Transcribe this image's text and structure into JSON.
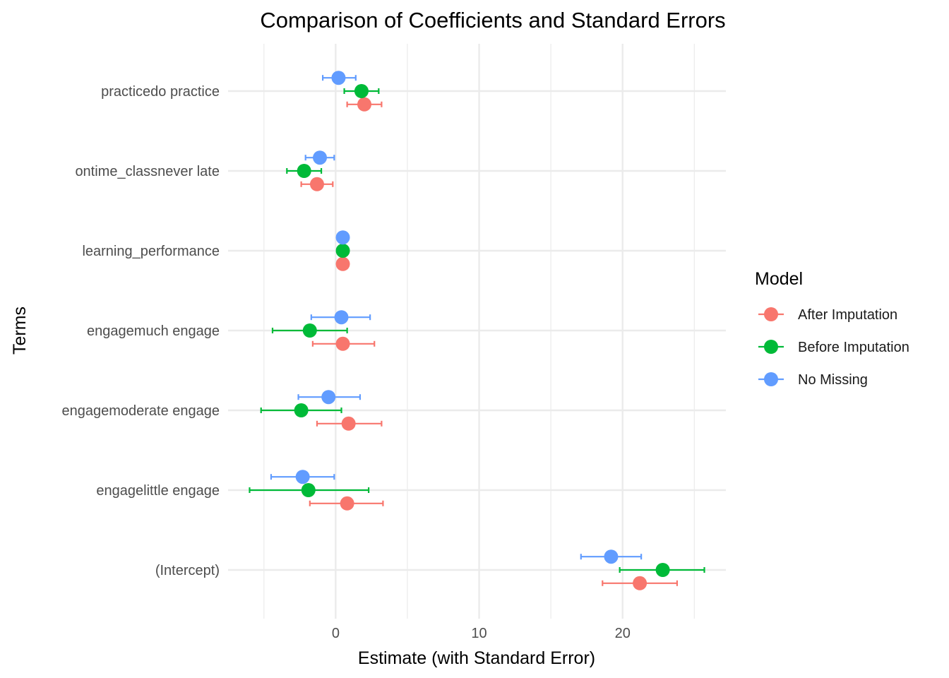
{
  "chart_data": {
    "type": "scatter",
    "subtype": "coefficient-plot-with-error-bars",
    "title": "Comparison of Coefficients and Standard Errors",
    "xlabel": "Estimate (with Standard Error)",
    "ylabel": "Terms",
    "xlim": [
      -7.5,
      27.2
    ],
    "x_ticks": [
      0,
      10,
      20
    ],
    "x_minor_ticks": [
      -5,
      5,
      15,
      25
    ],
    "grid": true,
    "legend": {
      "title": "Model",
      "position": "right"
    },
    "terms": [
      "(Intercept)",
      "engagelittle engage",
      "engagemoderate engage",
      "engagemuch engage",
      "learning_performance",
      "ontime_classnever late",
      "practicedo practice"
    ],
    "series": [
      {
        "name": "After Imputation",
        "color": "#F8766D",
        "points": [
          {
            "term": "(Intercept)",
            "estimate": 21.2,
            "lower": 18.6,
            "upper": 23.8
          },
          {
            "term": "engagelittle engage",
            "estimate": 0.8,
            "lower": -1.8,
            "upper": 3.3
          },
          {
            "term": "engagemoderate engage",
            "estimate": 0.9,
            "lower": -1.3,
            "upper": 3.2
          },
          {
            "term": "engagemuch engage",
            "estimate": 0.5,
            "lower": -1.6,
            "upper": 2.7
          },
          {
            "term": "learning_performance",
            "estimate": 0.5,
            "lower": 0.4,
            "upper": 0.6
          },
          {
            "term": "ontime_classnever late",
            "estimate": -1.3,
            "lower": -2.4,
            "upper": -0.2
          },
          {
            "term": "practicedo practice",
            "estimate": 2.0,
            "lower": 0.8,
            "upper": 3.2
          }
        ]
      },
      {
        "name": "Before Imputation",
        "color": "#00BA38",
        "points": [
          {
            "term": "(Intercept)",
            "estimate": 22.8,
            "lower": 19.8,
            "upper": 25.7
          },
          {
            "term": "engagelittle engage",
            "estimate": -1.9,
            "lower": -6.0,
            "upper": 2.3
          },
          {
            "term": "engagemoderate engage",
            "estimate": -2.4,
            "lower": -5.2,
            "upper": 0.4
          },
          {
            "term": "engagemuch engage",
            "estimate": -1.8,
            "lower": -4.4,
            "upper": 0.8
          },
          {
            "term": "learning_performance",
            "estimate": 0.5,
            "lower": 0.4,
            "upper": 0.6
          },
          {
            "term": "ontime_classnever late",
            "estimate": -2.2,
            "lower": -3.4,
            "upper": -1.0
          },
          {
            "term": "practicedo practice",
            "estimate": 1.8,
            "lower": 0.6,
            "upper": 3.0
          }
        ]
      },
      {
        "name": "No Missing",
        "color": "#619CFF",
        "points": [
          {
            "term": "(Intercept)",
            "estimate": 19.2,
            "lower": 17.1,
            "upper": 21.3
          },
          {
            "term": "engagelittle engage",
            "estimate": -2.3,
            "lower": -4.5,
            "upper": -0.1
          },
          {
            "term": "engagemoderate engage",
            "estimate": -0.5,
            "lower": -2.6,
            "upper": 1.7
          },
          {
            "term": "engagemuch engage",
            "estimate": 0.4,
            "lower": -1.7,
            "upper": 2.4
          },
          {
            "term": "learning_performance",
            "estimate": 0.5,
            "lower": 0.4,
            "upper": 0.6
          },
          {
            "term": "ontime_classnever late",
            "estimate": -1.1,
            "lower": -2.1,
            "upper": -0.1
          },
          {
            "term": "practicedo practice",
            "estimate": 0.2,
            "lower": -0.9,
            "upper": 1.4
          }
        ]
      }
    ]
  }
}
